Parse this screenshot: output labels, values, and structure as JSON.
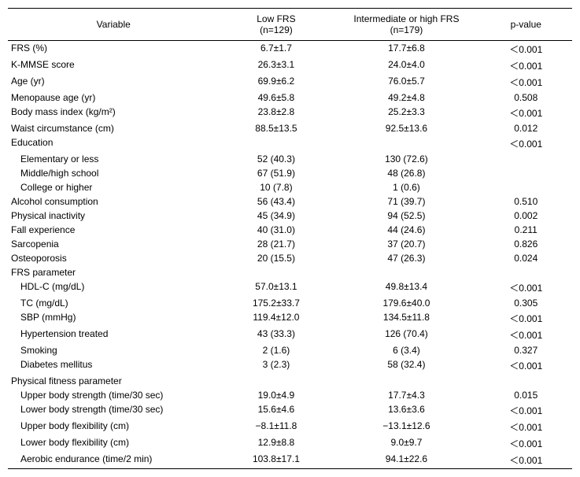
{
  "header": {
    "variable": "Variable",
    "low": "Low FRS",
    "low_n": "(n=129)",
    "high": "Intermediate or high FRS",
    "high_n": "(n=179)",
    "pvalue": "p-value"
  },
  "rows": [
    {
      "label": "FRS (%)",
      "low": "6.7±1.7",
      "high": "17.7±6.8",
      "p": "＜0.001",
      "indent": 0
    },
    {
      "label": "K-MMSE score",
      "low": "26.3±3.1",
      "high": "24.0±4.0",
      "p": "＜0.001",
      "indent": 0
    },
    {
      "label": "Age (yr)",
      "low": "69.9±6.2",
      "high": "76.0±5.7",
      "p": "＜0.001",
      "indent": 0
    },
    {
      "label": "Menopause age (yr)",
      "low": "49.6±5.8",
      "high": "49.2±4.8",
      "p": "0.508",
      "indent": 0
    },
    {
      "label": "Body mass index (kg/m²)",
      "low": "23.8±2.8",
      "high": "25.2±3.3",
      "p": "＜0.001",
      "indent": 0
    },
    {
      "label": "Waist circumstance (cm)",
      "low": "88.5±13.5",
      "high": "92.5±13.6",
      "p": "0.012",
      "indent": 0
    },
    {
      "label": "Education",
      "low": "",
      "high": "",
      "p": "＜0.001",
      "indent": 0
    },
    {
      "label": "Elementary or less",
      "low": "52 (40.3)",
      "high": "130 (72.6)",
      "p": "",
      "indent": 1
    },
    {
      "label": "Middle/high school",
      "low": "67 (51.9)",
      "high": "48 (26.8)",
      "p": "",
      "indent": 1
    },
    {
      "label": "College or higher",
      "low": "10 (7.8)",
      "high": "1 (0.6)",
      "p": "",
      "indent": 1
    },
    {
      "label": "Alcohol consumption",
      "low": "56 (43.4)",
      "high": "71 (39.7)",
      "p": "0.510",
      "indent": 0
    },
    {
      "label": "Physical inactivity",
      "low": "45 (34.9)",
      "high": "94 (52.5)",
      "p": "0.002",
      "indent": 0
    },
    {
      "label": "Fall experience",
      "low": "40 (31.0)",
      "high": "44 (24.6)",
      "p": "0.211",
      "indent": 0
    },
    {
      "label": "Sarcopenia",
      "low": "28 (21.7)",
      "high": "37 (20.7)",
      "p": "0.826",
      "indent": 0
    },
    {
      "label": "Osteoporosis",
      "low": "20 (15.5)",
      "high": "47 (26.3)",
      "p": "0.024",
      "indent": 0
    },
    {
      "label": "FRS parameter",
      "low": "",
      "high": "",
      "p": "",
      "indent": 0
    },
    {
      "label": "HDL-C (mg/dL)",
      "low": "57.0±13.1",
      "high": "49.8±13.4",
      "p": "＜0.001",
      "indent": 1
    },
    {
      "label": "TC (mg/dL)",
      "low": "175.2±33.7",
      "high": "179.6±40.0",
      "p": "0.305",
      "indent": 1
    },
    {
      "label": "SBP (mmHg)",
      "low": "119.4±12.0",
      "high": "134.5±11.8",
      "p": "＜0.001",
      "indent": 1
    },
    {
      "label": "Hypertension treated",
      "low": "43 (33.3)",
      "high": "126 (70.4)",
      "p": "＜0.001",
      "indent": 1
    },
    {
      "label": "Smoking",
      "low": "2 (1.6)",
      "high": "6 (3.4)",
      "p": "0.327",
      "indent": 1
    },
    {
      "label": "Diabetes mellitus",
      "low": "3 (2.3)",
      "high": "58 (32.4)",
      "p": "＜0.001",
      "indent": 1
    },
    {
      "label": "Physical fitness parameter",
      "low": "",
      "high": "",
      "p": "",
      "indent": 0
    },
    {
      "label": "Upper body strength (time/30 sec)",
      "low": "19.0±4.9",
      "high": "17.7±4.3",
      "p": "0.015",
      "indent": 1
    },
    {
      "label": "Lower body strength (time/30 sec)",
      "low": "15.6±4.6",
      "high": "13.6±3.6",
      "p": "＜0.001",
      "indent": 1
    },
    {
      "label": "Upper body flexibility (cm)",
      "low": "−8.1±11.8",
      "high": "−13.1±12.6",
      "p": "＜0.001",
      "indent": 1
    },
    {
      "label": "Lower body flexibility (cm)",
      "low": "12.9±8.8",
      "high": "9.0±9.7",
      "p": "＜0.001",
      "indent": 1
    },
    {
      "label": "Aerobic endurance (time/2 min)",
      "low": "103.8±17.1",
      "high": "94.1±22.6",
      "p": "＜0.001",
      "indent": 1
    }
  ]
}
